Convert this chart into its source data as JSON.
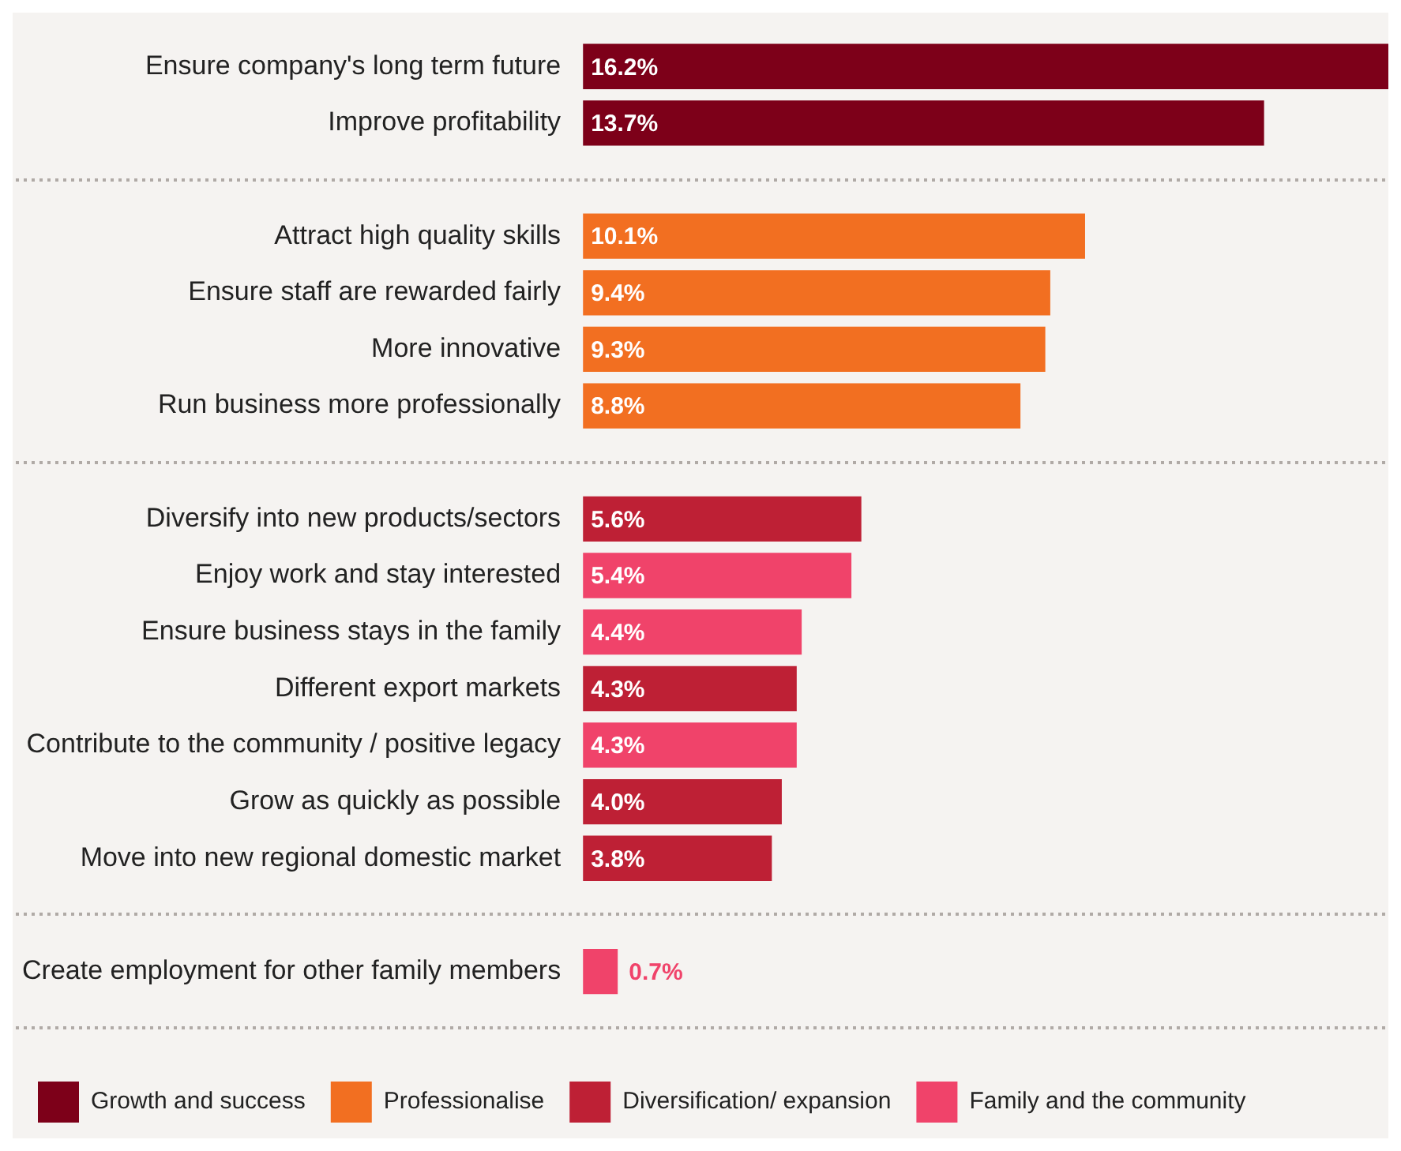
{
  "chart_data": {
    "type": "bar",
    "orientation": "horizontal",
    "stacked": true,
    "legend": "bottom",
    "categories": [
      "Ensure company's long term future",
      "Improve profitability",
      null,
      "Attract high quality skills",
      "Ensure staff are rewarded fairly",
      "More innovative",
      "Run business more professionally",
      null,
      "Diversify into new products/sectors",
      "Enjoy work and stay interested",
      "Ensure business stays in the family",
      "Different export markets",
      "Contribute to the community / positive legacy",
      "Grow as quickly as possible",
      "Move into new regional domestic market",
      null,
      "Create employment for other family members",
      null
    ],
    "series": [
      {
        "name": "Growth and success",
        "color": "#7d0019",
        "values": [
          16.2,
          13.7,
          null,
          null,
          null,
          null,
          null,
          null,
          null,
          null,
          null,
          null,
          null,
          null,
          null,
          null,
          null,
          null
        ],
        "value_labels": [
          "16.2%",
          "13.7%",
          null,
          null,
          null,
          null,
          null,
          null,
          null,
          null,
          null,
          null,
          null,
          null,
          null,
          null,
          null,
          null
        ]
      },
      {
        "name": "Professionalise",
        "color": "#f26f21",
        "values": [
          null,
          null,
          null,
          10.1,
          9.4,
          9.3,
          8.8,
          null,
          null,
          null,
          null,
          null,
          null,
          null,
          null,
          null,
          null,
          null
        ],
        "value_labels": [
          null,
          null,
          null,
          "10.1%",
          "9.4%",
          "9.3%",
          "8.8%",
          null,
          null,
          null,
          null,
          null,
          null,
          null,
          null,
          null,
          null,
          null
        ]
      },
      {
        "name": "Diversification/ expansion",
        "color": "#be2035",
        "values": [
          null,
          null,
          null,
          null,
          null,
          null,
          null,
          null,
          5.6,
          null,
          null,
          4.3,
          null,
          4.0,
          3.8,
          null,
          null,
          null
        ],
        "value_labels": [
          null,
          null,
          null,
          null,
          null,
          null,
          null,
          null,
          "5.6%",
          null,
          null,
          "4.3%",
          null,
          "4.0%",
          "3.8%",
          null,
          null,
          null
        ]
      },
      {
        "name": "Family and the community",
        "color": "#f0436a",
        "values": [
          null,
          null,
          null,
          null,
          null,
          null,
          null,
          null,
          null,
          5.4,
          4.4,
          null,
          4.3,
          null,
          null,
          null,
          0.7,
          null
        ],
        "value_labels": [
          null,
          null,
          null,
          null,
          null,
          null,
          null,
          null,
          null,
          "5.4%",
          "4.4%",
          null,
          "4.3%",
          null,
          null,
          null,
          "0.7%",
          null
        ]
      }
    ]
  }
}
